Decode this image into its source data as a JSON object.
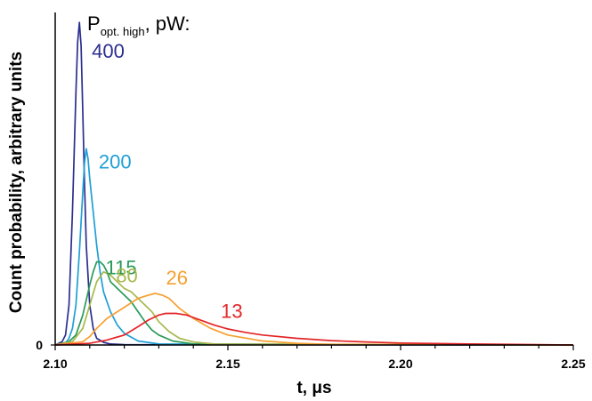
{
  "chart_data": {
    "type": "line",
    "title": "",
    "legend_title": {
      "main": "P",
      "subscript": "opt. high",
      "suffix": ", pW:"
    },
    "xlabel": "t, μs",
    "ylabel": "Count probability, arbitrary units",
    "xlim": [
      2.1,
      2.25
    ],
    "ylim": [
      0,
      1.0
    ],
    "x_ticks": [
      "2.10",
      "2.15",
      "2.20",
      "2.25"
    ],
    "y_ticks": [
      "0"
    ],
    "grid": false,
    "series": [
      {
        "name": "400",
        "color": "#2b2f8f",
        "x": [
          2.1,
          2.102,
          2.103,
          2.104,
          2.105,
          2.106,
          2.1065,
          2.107,
          2.1075,
          2.108,
          2.1085,
          2.109,
          2.11,
          2.111,
          2.112,
          2.114,
          2.116,
          2.12,
          2.25
        ],
        "y": [
          0.0,
          0.01,
          0.03,
          0.12,
          0.4,
          0.76,
          0.91,
          0.97,
          0.9,
          0.7,
          0.48,
          0.3,
          0.12,
          0.05,
          0.02,
          0.008,
          0.003,
          0.001,
          0.0
        ]
      },
      {
        "name": "200",
        "color": "#1f9fd6",
        "x": [
          2.1,
          2.103,
          2.104,
          2.105,
          2.106,
          2.107,
          2.108,
          2.1085,
          2.109,
          2.1095,
          2.11,
          2.111,
          2.112,
          2.113,
          2.114,
          2.116,
          2.118,
          2.12,
          2.124,
          2.13,
          2.25
        ],
        "y": [
          0.0,
          0.005,
          0.02,
          0.05,
          0.12,
          0.28,
          0.46,
          0.55,
          0.59,
          0.56,
          0.5,
          0.4,
          0.3,
          0.22,
          0.16,
          0.1,
          0.06,
          0.035,
          0.012,
          0.003,
          0.0
        ]
      },
      {
        "name": "115",
        "color": "#2a9a5a",
        "x": [
          2.1,
          2.104,
          2.106,
          2.108,
          2.11,
          2.111,
          2.112,
          2.113,
          2.114,
          2.115,
          2.116,
          2.118,
          2.12,
          2.122,
          2.124,
          2.126,
          2.128,
          2.13,
          2.134,
          2.14,
          2.25
        ],
        "y": [
          0.0,
          0.01,
          0.03,
          0.09,
          0.18,
          0.22,
          0.25,
          0.25,
          0.24,
          0.22,
          0.19,
          0.17,
          0.15,
          0.13,
          0.1,
          0.07,
          0.045,
          0.03,
          0.012,
          0.003,
          0.0
        ]
      },
      {
        "name": "80",
        "color": "#a8b84e",
        "x": [
          2.1,
          2.105,
          2.108,
          2.11,
          2.112,
          2.114,
          2.116,
          2.118,
          2.12,
          2.122,
          2.124,
          2.126,
          2.128,
          2.13,
          2.133,
          2.136,
          2.14,
          2.146,
          2.25
        ],
        "y": [
          0.0,
          0.01,
          0.05,
          0.12,
          0.19,
          0.22,
          0.21,
          0.19,
          0.17,
          0.16,
          0.14,
          0.12,
          0.1,
          0.07,
          0.04,
          0.02,
          0.009,
          0.003,
          0.0
        ]
      },
      {
        "name": "26",
        "color": "#f5a030",
        "x": [
          2.1,
          2.108,
          2.11,
          2.112,
          2.115,
          2.118,
          2.121,
          2.124,
          2.127,
          2.129,
          2.131,
          2.133,
          2.136,
          2.14,
          2.145,
          2.15,
          2.16,
          2.17,
          2.18,
          2.25
        ],
        "y": [
          0.0,
          0.01,
          0.025,
          0.05,
          0.08,
          0.1,
          0.12,
          0.14,
          0.15,
          0.155,
          0.15,
          0.14,
          0.11,
          0.08,
          0.05,
          0.03,
          0.012,
          0.005,
          0.002,
          0.0
        ]
      },
      {
        "name": "13",
        "color": "#e42527",
        "x": [
          2.1,
          2.11,
          2.115,
          2.12,
          2.124,
          2.127,
          2.13,
          2.132,
          2.135,
          2.138,
          2.142,
          2.146,
          2.15,
          2.155,
          2.16,
          2.17,
          2.18,
          2.19,
          2.2,
          2.22,
          2.24,
          2.25
        ],
        "y": [
          0.0,
          0.005,
          0.015,
          0.03,
          0.055,
          0.075,
          0.09,
          0.095,
          0.095,
          0.09,
          0.075,
          0.06,
          0.048,
          0.038,
          0.03,
          0.02,
          0.013,
          0.009,
          0.006,
          0.003,
          0.001,
          0.0
        ]
      }
    ]
  }
}
